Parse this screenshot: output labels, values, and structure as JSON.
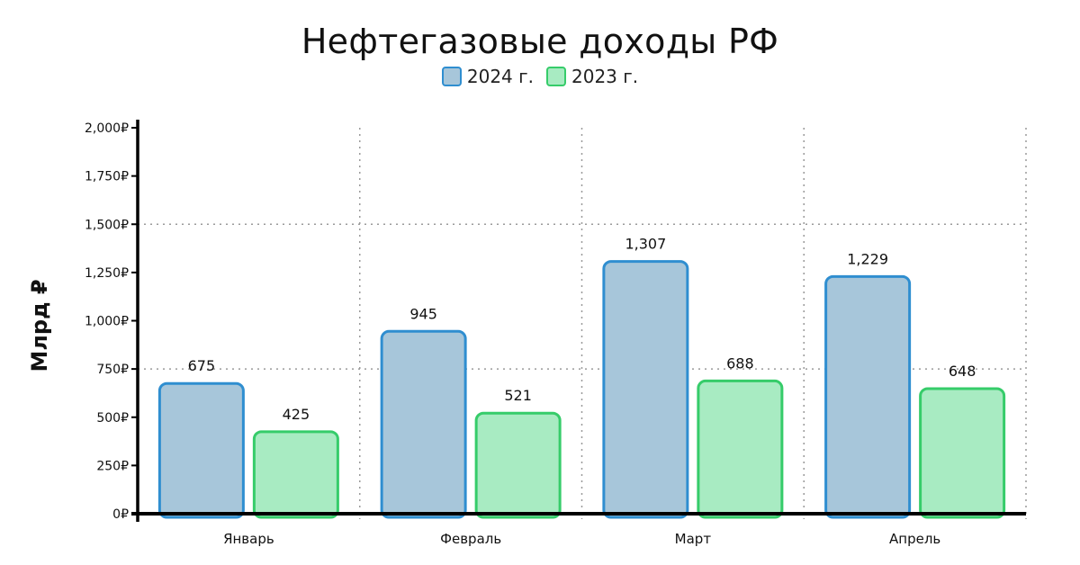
{
  "chart_data": {
    "type": "bar",
    "title": "Нефтегазовые доходы РФ",
    "ylabel": "Млрд ₽",
    "xlabel": "",
    "categories": [
      "Январь",
      "Февраль",
      "Март",
      "Апрель"
    ],
    "series": [
      {
        "name": "2024 г.",
        "values": [
          675,
          945,
          1307,
          1229
        ],
        "labels": [
          "675",
          "945",
          "1,307",
          "1,229"
        ],
        "color": "#a7c6da",
        "stroke": "#2f8ed0"
      },
      {
        "name": "2023 г.",
        "values": [
          425,
          521,
          688,
          648
        ],
        "labels": [
          "425",
          "521",
          "688",
          "648"
        ],
        "color": "#a8ebc2",
        "stroke": "#36cc6a"
      }
    ],
    "ylim": [
      0,
      2000
    ],
    "yticks": [
      0,
      250,
      500,
      750,
      1000,
      1250,
      1500,
      1750,
      2000
    ],
    "ytick_labels": [
      "0₽",
      "250₽",
      "500₽",
      "750₽",
      "1,000₽",
      "1,250₽",
      "1,500₽",
      "1,750₽",
      "2,000₽"
    ],
    "grid": "dotted",
    "legend_position": "top-center"
  }
}
